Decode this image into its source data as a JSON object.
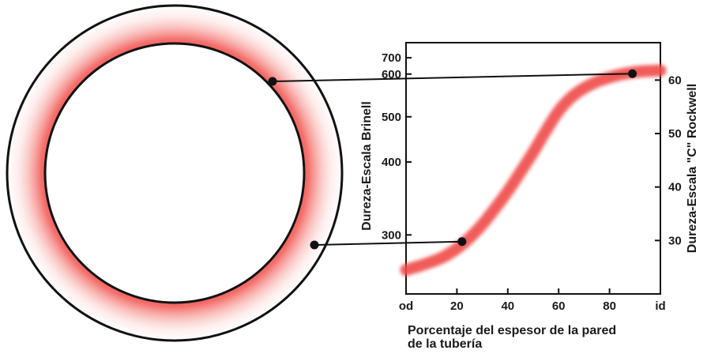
{
  "diagram": {
    "colors": {
      "hardness_band": "#ef4b48",
      "ink": "#111111",
      "background": "#ffffff"
    },
    "pipe_cross_section": {
      "name": "pipe-wall-cross-section"
    },
    "leaders": [
      {
        "from": "inner-wall-point",
        "to": "curve-high-point"
      },
      {
        "from": "outer-wall-point",
        "to": "curve-low-point"
      }
    ]
  },
  "chart_data": {
    "type": "line",
    "title": "",
    "xlabel_line1": "Porcentaje del espesor de la pared",
    "xlabel_line2": "de la tubería",
    "ylabel_left": "Dureza-Escala Brinell",
    "ylabel_right": "Dureza-Escala \"C\" Rockwell",
    "x_ticks": [
      "od",
      "20",
      "40",
      "60",
      "80",
      "id"
    ],
    "x_tick_values": [
      0,
      20,
      40,
      60,
      80,
      100
    ],
    "xlim": [
      0,
      100
    ],
    "left_ticks": [
      "700",
      "600",
      "500",
      "400",
      "300"
    ],
    "left_tick_pos": [
      0.94,
      0.875,
      0.705,
      0.525,
      0.235
    ],
    "right_ticks": [
      "60",
      "50",
      "40",
      "30"
    ],
    "right_tick_values": [
      60,
      50,
      40,
      30
    ],
    "ylim_right": [
      20,
      67
    ],
    "grid": false,
    "series": [
      {
        "x": [
          0,
          5,
          10,
          15,
          20,
          25,
          30,
          35,
          40,
          45,
          50,
          55,
          60,
          65,
          70,
          75,
          80,
          85,
          90,
          95,
          100
        ],
        "y": [
          24.5,
          25.2,
          26.0,
          27.0,
          28.5,
          30.5,
          33.0,
          36.0,
          39.2,
          42.8,
          46.5,
          50.5,
          54.2,
          56.8,
          58.5,
          59.7,
          60.5,
          61.1,
          61.5,
          61.7,
          61.8
        ]
      }
    ],
    "markers": [
      {
        "x": 22,
        "y": 29.8
      },
      {
        "x": 89,
        "y": 61.2
      }
    ]
  }
}
